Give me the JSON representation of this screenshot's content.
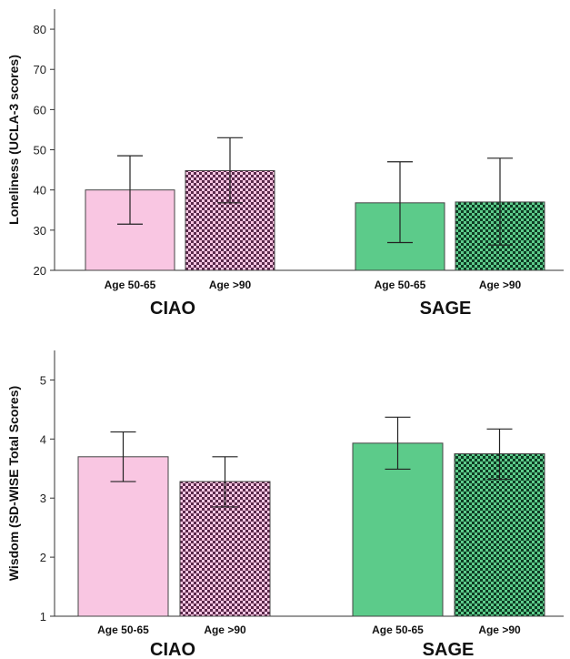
{
  "chart_data": [
    {
      "type": "bar",
      "ylabel": "Loneliness (UCLA-3 scores)",
      "ylim": [
        20,
        85
      ],
      "yticks": [
        20,
        30,
        40,
        50,
        60,
        70,
        80
      ],
      "groups": [
        "CIAO",
        "SAGE"
      ],
      "categories": [
        "Age 50-65",
        "Age >90",
        "Age 50-65",
        "Age >90"
      ],
      "values": [
        40,
        44.8,
        36.8,
        37
      ],
      "error_low": [
        31.5,
        36.8,
        26.9,
        26.3
      ],
      "error_high": [
        48.5,
        53,
        47,
        47.9
      ],
      "colors": [
        "#f9c6e2",
        "checker-pink",
        "#5ccb8a",
        "checker-green"
      ]
    },
    {
      "type": "bar",
      "ylabel": "Wisdom (SD-WISE Total Scores)",
      "ylim": [
        1,
        5.5
      ],
      "yticks": [
        1,
        2,
        3,
        4,
        5
      ],
      "groups": [
        "CIAO",
        "SAGE"
      ],
      "categories": [
        "Age 50-65",
        "Age >90",
        "Age 50-65",
        "Age >90"
      ],
      "values": [
        3.7,
        3.28,
        3.93,
        3.75
      ],
      "error_low": [
        3.28,
        2.85,
        3.49,
        3.32
      ],
      "error_high": [
        4.12,
        3.7,
        4.37,
        4.17
      ],
      "colors": [
        "#f9c6e2",
        "checker-pink",
        "#5ccb8a",
        "checker-green"
      ]
    }
  ],
  "colors": {
    "pink": "#f9c6e2",
    "pink_dark": "#5a2a4c",
    "green": "#5ccb8a",
    "green_dark": "#0f3d24",
    "axis": "#333333"
  }
}
